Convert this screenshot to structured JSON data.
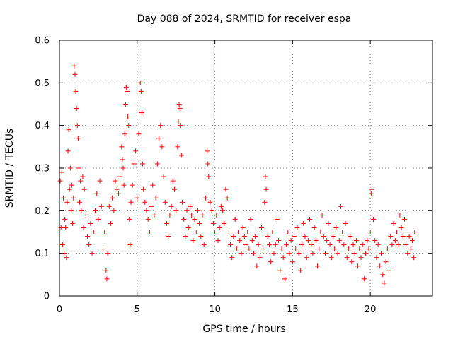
{
  "chart_data": {
    "type": "scatter",
    "title": "Day 088 of 2024, SRMTID for receiver espa",
    "xlabel": "GPS time / hours",
    "ylabel": "SRMTID / TECUs",
    "xlim": [
      0,
      24
    ],
    "ylim": [
      0,
      0.6
    ],
    "xticks": [
      0,
      5,
      10,
      15,
      20
    ],
    "yticks": [
      0,
      0.1,
      0.2,
      0.3,
      0.4,
      0.5,
      0.6
    ],
    "xtick_labels": [
      "0",
      "5",
      "10",
      "15",
      "20"
    ],
    "ytick_labels": [
      "0",
      "0.1",
      "0.2",
      "0.3",
      "0.4",
      "0.5",
      "0.6"
    ],
    "grid": true,
    "legend": "none",
    "marker": "+",
    "color": "#ff0000",
    "series": [
      {
        "name": "espa",
        "points": [
          [
            0.0,
            0.15
          ],
          [
            0.05,
            0.27
          ],
          [
            0.1,
            0.16
          ],
          [
            0.15,
            0.29
          ],
          [
            0.2,
            0.12
          ],
          [
            0.25,
            0.23
          ],
          [
            0.3,
            0.1
          ],
          [
            0.35,
            0.18
          ],
          [
            0.4,
            0.16
          ],
          [
            0.45,
            0.09
          ],
          [
            0.5,
            0.22
          ],
          [
            0.55,
            0.34
          ],
          [
            0.6,
            0.39
          ],
          [
            0.65,
            0.25
          ],
          [
            0.7,
            0.3
          ],
          [
            0.75,
            0.2
          ],
          [
            0.8,
            0.26
          ],
          [
            0.85,
            0.17
          ],
          [
            0.9,
            0.23
          ],
          [
            0.95,
            0.54
          ],
          [
            1.0,
            0.52
          ],
          [
            1.05,
            0.48
          ],
          [
            1.1,
            0.44
          ],
          [
            1.15,
            0.4
          ],
          [
            1.2,
            0.37
          ],
          [
            1.25,
            0.3
          ],
          [
            1.3,
            0.22
          ],
          [
            1.35,
            0.27
          ],
          [
            1.4,
            0.2
          ],
          [
            1.5,
            0.28
          ],
          [
            1.55,
            0.16
          ],
          [
            1.6,
            0.25
          ],
          [
            1.7,
            0.19
          ],
          [
            1.8,
            0.14
          ],
          [
            1.9,
            0.12
          ],
          [
            2.0,
            0.17
          ],
          [
            2.1,
            0.1
          ],
          [
            2.2,
            0.15
          ],
          [
            2.3,
            0.2
          ],
          [
            2.4,
            0.24
          ],
          [
            2.5,
            0.18
          ],
          [
            2.6,
            0.27
          ],
          [
            2.7,
            0.21
          ],
          [
            2.8,
            0.11
          ],
          [
            2.9,
            0.15
          ],
          [
            3.0,
            0.06
          ],
          [
            3.05,
            0.04
          ],
          [
            3.1,
            0.1
          ],
          [
            3.2,
            0.21
          ],
          [
            3.3,
            0.17
          ],
          [
            3.4,
            0.23
          ],
          [
            3.5,
            0.2
          ],
          [
            3.6,
            0.27
          ],
          [
            3.7,
            0.25
          ],
          [
            3.8,
            0.24
          ],
          [
            3.9,
            0.28
          ],
          [
            4.0,
            0.35
          ],
          [
            4.05,
            0.32
          ],
          [
            4.1,
            0.3
          ],
          [
            4.15,
            0.26
          ],
          [
            4.2,
            0.38
          ],
          [
            4.25,
            0.45
          ],
          [
            4.3,
            0.49
          ],
          [
            4.35,
            0.48
          ],
          [
            4.4,
            0.42
          ],
          [
            4.45,
            0.4
          ],
          [
            4.5,
            0.18
          ],
          [
            4.55,
            0.12
          ],
          [
            4.6,
            0.22
          ],
          [
            4.7,
            0.26
          ],
          [
            4.8,
            0.31
          ],
          [
            4.9,
            0.34
          ],
          [
            5.0,
            0.23
          ],
          [
            5.1,
            0.38
          ],
          [
            5.2,
            0.5
          ],
          [
            5.25,
            0.48
          ],
          [
            5.3,
            0.43
          ],
          [
            5.35,
            0.31
          ],
          [
            5.4,
            0.25
          ],
          [
            5.5,
            0.22
          ],
          [
            5.6,
            0.2
          ],
          [
            5.7,
            0.18
          ],
          [
            5.8,
            0.15
          ],
          [
            5.9,
            0.21
          ],
          [
            6.0,
            0.26
          ],
          [
            6.1,
            0.19
          ],
          [
            6.2,
            0.23
          ],
          [
            6.3,
            0.31
          ],
          [
            6.4,
            0.37
          ],
          [
            6.5,
            0.4
          ],
          [
            6.6,
            0.35
          ],
          [
            6.7,
            0.28
          ],
          [
            6.8,
            0.22
          ],
          [
            6.9,
            0.17
          ],
          [
            7.0,
            0.14
          ],
          [
            7.1,
            0.19
          ],
          [
            7.2,
            0.21
          ],
          [
            7.3,
            0.27
          ],
          [
            7.4,
            0.25
          ],
          [
            7.5,
            0.2
          ],
          [
            7.6,
            0.35
          ],
          [
            7.65,
            0.41
          ],
          [
            7.7,
            0.45
          ],
          [
            7.75,
            0.44
          ],
          [
            7.8,
            0.4
          ],
          [
            7.85,
            0.33
          ],
          [
            7.9,
            0.22
          ],
          [
            8.0,
            0.18
          ],
          [
            8.1,
            0.14
          ],
          [
            8.2,
            0.2
          ],
          [
            8.3,
            0.16
          ],
          [
            8.4,
            0.21
          ],
          [
            8.5,
            0.19
          ],
          [
            8.6,
            0.13
          ],
          [
            8.7,
            0.18
          ],
          [
            8.8,
            0.15
          ],
          [
            8.9,
            0.2
          ],
          [
            9.0,
            0.17
          ],
          [
            9.1,
            0.14
          ],
          [
            9.2,
            0.19
          ],
          [
            9.3,
            0.12
          ],
          [
            9.4,
            0.23
          ],
          [
            9.5,
            0.34
          ],
          [
            9.55,
            0.31
          ],
          [
            9.6,
            0.28
          ],
          [
            9.7,
            0.22
          ],
          [
            9.8,
            0.2
          ],
          [
            9.9,
            0.17
          ],
          [
            10.0,
            0.15
          ],
          [
            10.1,
            0.19
          ],
          [
            10.2,
            0.13
          ],
          [
            10.3,
            0.16
          ],
          [
            10.4,
            0.21
          ],
          [
            10.5,
            0.2
          ],
          [
            10.6,
            0.17
          ],
          [
            10.7,
            0.25
          ],
          [
            10.8,
            0.23
          ],
          [
            10.9,
            0.15
          ],
          [
            11.0,
            0.12
          ],
          [
            11.1,
            0.09
          ],
          [
            11.2,
            0.14
          ],
          [
            11.3,
            0.18
          ],
          [
            11.4,
            0.11
          ],
          [
            11.5,
            0.15
          ],
          [
            11.6,
            0.13
          ],
          [
            11.7,
            0.1
          ],
          [
            11.8,
            0.16
          ],
          [
            11.9,
            0.14
          ],
          [
            12.0,
            0.12
          ],
          [
            12.1,
            0.15
          ],
          [
            12.2,
            0.11
          ],
          [
            12.3,
            0.18
          ],
          [
            12.4,
            0.13
          ],
          [
            12.5,
            0.1
          ],
          [
            12.6,
            0.14
          ],
          [
            12.7,
            0.07
          ],
          [
            12.8,
            0.12
          ],
          [
            12.9,
            0.09
          ],
          [
            13.0,
            0.16
          ],
          [
            13.1,
            0.11
          ],
          [
            13.2,
            0.22
          ],
          [
            13.25,
            0.28
          ],
          [
            13.3,
            0.25
          ],
          [
            13.4,
            0.14
          ],
          [
            13.5,
            0.12
          ],
          [
            13.6,
            0.08
          ],
          [
            13.7,
            0.15
          ],
          [
            13.8,
            0.1
          ],
          [
            13.9,
            0.12
          ],
          [
            14.0,
            0.18
          ],
          [
            14.1,
            0.13
          ],
          [
            14.2,
            0.06
          ],
          [
            14.3,
            0.11
          ],
          [
            14.4,
            0.09
          ],
          [
            14.5,
            0.04
          ],
          [
            14.6,
            0.12
          ],
          [
            14.7,
            0.15
          ],
          [
            14.8,
            0.1
          ],
          [
            14.9,
            0.13
          ],
          [
            15.0,
            0.08
          ],
          [
            15.1,
            0.14
          ],
          [
            15.2,
            0.11
          ],
          [
            15.3,
            0.16
          ],
          [
            15.4,
            0.1
          ],
          [
            15.5,
            0.06
          ],
          [
            15.6,
            0.12
          ],
          [
            15.7,
            0.17
          ],
          [
            15.8,
            0.14
          ],
          [
            15.9,
            0.09
          ],
          [
            16.0,
            0.13
          ],
          [
            16.1,
            0.18
          ],
          [
            16.2,
            0.12
          ],
          [
            16.3,
            0.1
          ],
          [
            16.4,
            0.16
          ],
          [
            16.5,
            0.13
          ],
          [
            16.6,
            0.07
          ],
          [
            16.7,
            0.11
          ],
          [
            16.8,
            0.15
          ],
          [
            16.9,
            0.19
          ],
          [
            17.0,
            0.14
          ],
          [
            17.1,
            0.1
          ],
          [
            17.2,
            0.13
          ],
          [
            17.3,
            0.17
          ],
          [
            17.4,
            0.12
          ],
          [
            17.5,
            0.09
          ],
          [
            17.6,
            0.14
          ],
          [
            17.7,
            0.11
          ],
          [
            17.8,
            0.16
          ],
          [
            17.9,
            0.1
          ],
          [
            18.0,
            0.13
          ],
          [
            18.1,
            0.21
          ],
          [
            18.2,
            0.15
          ],
          [
            18.3,
            0.12
          ],
          [
            18.4,
            0.17
          ],
          [
            18.5,
            0.09
          ],
          [
            18.6,
            0.11
          ],
          [
            18.7,
            0.14
          ],
          [
            18.8,
            0.08
          ],
          [
            18.9,
            0.12
          ],
          [
            19.0,
            0.1
          ],
          [
            19.1,
            0.13
          ],
          [
            19.2,
            0.07
          ],
          [
            19.3,
            0.11
          ],
          [
            19.4,
            0.09
          ],
          [
            19.5,
            0.12
          ],
          [
            19.6,
            0.04
          ],
          [
            19.7,
            0.1
          ],
          [
            19.8,
            0.13
          ],
          [
            19.9,
            0.11
          ],
          [
            20.0,
            0.15
          ],
          [
            20.05,
            0.24
          ],
          [
            20.1,
            0.25
          ],
          [
            20.2,
            0.18
          ],
          [
            20.3,
            0.13
          ],
          [
            20.4,
            0.09
          ],
          [
            20.5,
            0.12
          ],
          [
            20.6,
            0.07
          ],
          [
            20.7,
            0.1
          ],
          [
            20.8,
            0.05
          ],
          [
            20.9,
            0.03
          ],
          [
            21.0,
            0.08
          ],
          [
            21.1,
            0.11
          ],
          [
            21.2,
            0.06
          ],
          [
            21.3,
            0.14
          ],
          [
            21.4,
            0.12
          ],
          [
            21.5,
            0.17
          ],
          [
            21.6,
            0.13
          ],
          [
            21.7,
            0.15
          ],
          [
            21.8,
            0.12
          ],
          [
            21.9,
            0.19
          ],
          [
            22.0,
            0.16
          ],
          [
            22.1,
            0.14
          ],
          [
            22.2,
            0.18
          ],
          [
            22.3,
            0.12
          ],
          [
            22.4,
            0.1
          ],
          [
            22.5,
            0.14
          ],
          [
            22.6,
            0.11
          ],
          [
            22.7,
            0.13
          ],
          [
            22.8,
            0.09
          ],
          [
            22.85,
            0.15
          ]
        ]
      }
    ]
  }
}
